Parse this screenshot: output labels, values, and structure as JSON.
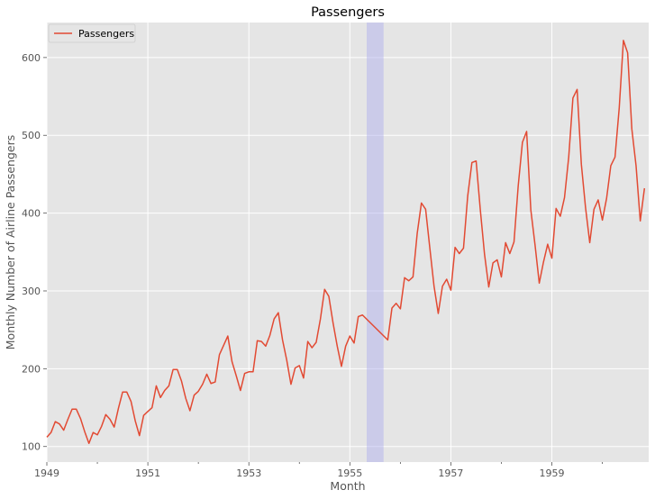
{
  "chart_data": {
    "type": "line",
    "title": "Passengers",
    "xlabel": "Month",
    "ylabel": "Monthly Number of Airline Passengers",
    "x_start": "1949-01",
    "x_end": "1960-12",
    "xlim": [
      1949.0,
      1960.917
    ],
    "ylim": [
      80,
      645
    ],
    "x_ticks": [
      1949,
      1951,
      1953,
      1955,
      1957,
      1959
    ],
    "x_tick_labels": [
      "1949",
      "1951",
      "1953",
      "1955",
      "1957",
      "1959"
    ],
    "y_ticks": [
      100,
      200,
      300,
      400,
      500,
      600
    ],
    "y_tick_labels": [
      "100",
      "200",
      "300",
      "400",
      "500",
      "600"
    ],
    "grid": true,
    "legend": "top-left",
    "highlight_span": {
      "from": "1955-05",
      "to": "1955-09",
      "color": "#aaaaee"
    },
    "series": [
      {
        "name": "Passengers",
        "color": "#e24a33",
        "points": [
          [
            "1949-01",
            112
          ],
          [
            "1949-02",
            118
          ],
          [
            "1949-03",
            132
          ],
          [
            "1949-04",
            129
          ],
          [
            "1949-05",
            121
          ],
          [
            "1949-06",
            135
          ],
          [
            "1949-07",
            148
          ],
          [
            "1949-08",
            148
          ],
          [
            "1949-09",
            136
          ],
          [
            "1949-10",
            119
          ],
          [
            "1949-11",
            104
          ],
          [
            "1949-12",
            118
          ],
          [
            "1950-01",
            115
          ],
          [
            "1950-02",
            126
          ],
          [
            "1950-03",
            141
          ],
          [
            "1950-04",
            135
          ],
          [
            "1950-05",
            125
          ],
          [
            "1950-06",
            149
          ],
          [
            "1950-07",
            170
          ],
          [
            "1950-08",
            170
          ],
          [
            "1950-09",
            158
          ],
          [
            "1950-10",
            133
          ],
          [
            "1950-11",
            114
          ],
          [
            "1950-12",
            140
          ],
          [
            "1951-01",
            145
          ],
          [
            "1951-02",
            150
          ],
          [
            "1951-03",
            178
          ],
          [
            "1951-04",
            163
          ],
          [
            "1951-05",
            172
          ],
          [
            "1951-06",
            178
          ],
          [
            "1951-07",
            199
          ],
          [
            "1951-08",
            199
          ],
          [
            "1951-09",
            184
          ],
          [
            "1951-10",
            162
          ],
          [
            "1951-11",
            146
          ],
          [
            "1951-12",
            166
          ],
          [
            "1952-01",
            171
          ],
          [
            "1952-02",
            180
          ],
          [
            "1952-03",
            193
          ],
          [
            "1952-04",
            181
          ],
          [
            "1952-05",
            183
          ],
          [
            "1952-06",
            218
          ],
          [
            "1952-07",
            230
          ],
          [
            "1952-08",
            242
          ],
          [
            "1952-09",
            209
          ],
          [
            "1952-10",
            191
          ],
          [
            "1952-11",
            172
          ],
          [
            "1952-12",
            194
          ],
          [
            "1953-01",
            196
          ],
          [
            "1953-02",
            196
          ],
          [
            "1953-03",
            236
          ],
          [
            "1953-04",
            235
          ],
          [
            "1953-05",
            229
          ],
          [
            "1953-06",
            243
          ],
          [
            "1953-07",
            264
          ],
          [
            "1953-08",
            272
          ],
          [
            "1953-09",
            237
          ],
          [
            "1953-10",
            211
          ],
          [
            "1953-11",
            180
          ],
          [
            "1953-12",
            201
          ],
          [
            "1954-01",
            204
          ],
          [
            "1954-02",
            188
          ],
          [
            "1954-03",
            235
          ],
          [
            "1954-04",
            227
          ],
          [
            "1954-05",
            234
          ],
          [
            "1954-06",
            264
          ],
          [
            "1954-07",
            302
          ],
          [
            "1954-08",
            293
          ],
          [
            "1954-09",
            259
          ],
          [
            "1954-10",
            229
          ],
          [
            "1954-11",
            203
          ],
          [
            "1954-12",
            229
          ],
          [
            "1955-01",
            242
          ],
          [
            "1955-02",
            233
          ],
          [
            "1955-03",
            267
          ],
          [
            "1955-04",
            269
          ],
          [
            "1955-10",
            237
          ],
          [
            "1955-11",
            278
          ],
          [
            "1955-12",
            284
          ],
          [
            "1956-01",
            277
          ],
          [
            "1956-02",
            317
          ],
          [
            "1956-03",
            313
          ],
          [
            "1956-04",
            318
          ],
          [
            "1956-05",
            374
          ],
          [
            "1956-06",
            413
          ],
          [
            "1956-07",
            405
          ],
          [
            "1956-08",
            355
          ],
          [
            "1956-09",
            306
          ],
          [
            "1956-10",
            271
          ],
          [
            "1956-11",
            306
          ],
          [
            "1956-12",
            315
          ],
          [
            "1957-01",
            301
          ],
          [
            "1957-02",
            356
          ],
          [
            "1957-03",
            348
          ],
          [
            "1957-04",
            355
          ],
          [
            "1957-05",
            422
          ],
          [
            "1957-06",
            465
          ],
          [
            "1957-07",
            467
          ],
          [
            "1957-08",
            404
          ],
          [
            "1957-09",
            347
          ],
          [
            "1957-10",
            305
          ],
          [
            "1957-11",
            336
          ],
          [
            "1957-12",
            340
          ],
          [
            "1958-01",
            318
          ],
          [
            "1958-02",
            362
          ],
          [
            "1958-03",
            348
          ],
          [
            "1958-04",
            363
          ],
          [
            "1958-05",
            435
          ],
          [
            "1958-06",
            491
          ],
          [
            "1958-07",
            505
          ],
          [
            "1958-08",
            404
          ],
          [
            "1958-09",
            359
          ],
          [
            "1958-10",
            310
          ],
          [
            "1958-11",
            337
          ],
          [
            "1958-12",
            360
          ],
          [
            "1959-01",
            342
          ],
          [
            "1959-02",
            406
          ],
          [
            "1959-03",
            396
          ],
          [
            "1959-04",
            420
          ],
          [
            "1959-05",
            472
          ],
          [
            "1959-06",
            548
          ],
          [
            "1959-07",
            559
          ],
          [
            "1959-08",
            463
          ],
          [
            "1959-09",
            407
          ],
          [
            "1959-10",
            362
          ],
          [
            "1959-11",
            405
          ],
          [
            "1959-12",
            417
          ],
          [
            "1960-01",
            391
          ],
          [
            "1960-02",
            419
          ],
          [
            "1960-03",
            461
          ],
          [
            "1960-04",
            472
          ],
          [
            "1960-05",
            535
          ],
          [
            "1960-06",
            622
          ],
          [
            "1960-07",
            606
          ],
          [
            "1960-08",
            508
          ],
          [
            "1960-09",
            461
          ],
          [
            "1960-10",
            390
          ],
          [
            "1960-11",
            432
          ]
        ]
      }
    ]
  }
}
